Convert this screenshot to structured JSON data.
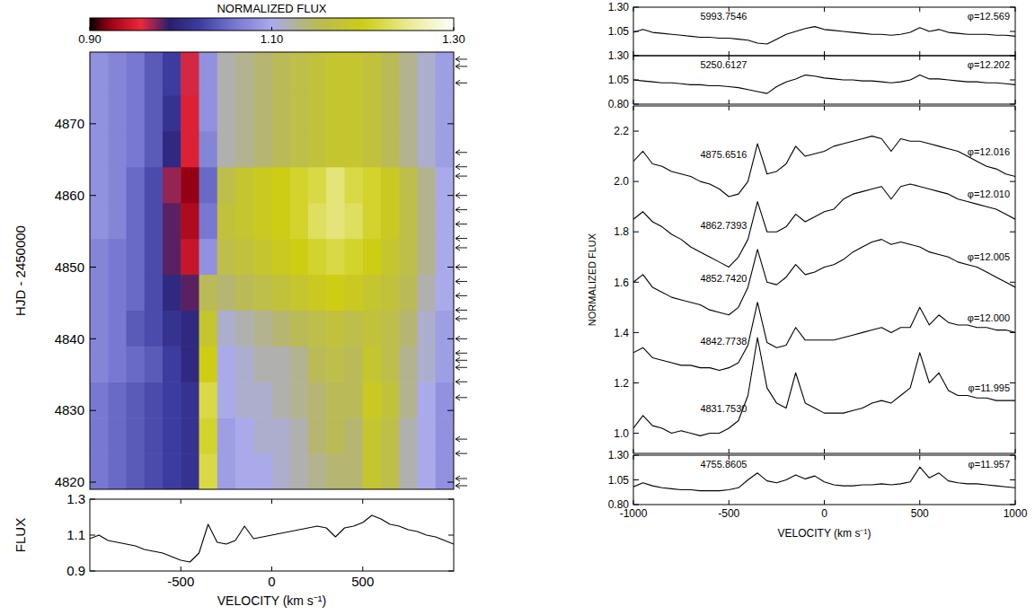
{
  "chart_data": [
    {
      "type": "heatmap",
      "ylabel": "HJD - 2450000",
      "xlim": [
        -1000,
        1000
      ],
      "ylim": [
        4819,
        4880
      ],
      "yticks": [
        4820,
        4830,
        4840,
        4850,
        4860,
        4870
      ],
      "tick_labels": "y",
      "colorbar": {
        "title": "NORMALIZED FLUX",
        "range": [
          0.9,
          1.3
        ],
        "ticks": [
          {
            "value": 0.9,
            "label": "0.90"
          },
          {
            "value": 1.1,
            "label": "1.10"
          },
          {
            "value": 1.3,
            "label": "1.30"
          }
        ]
      },
      "x_edges": [
        -1000,
        -900,
        -800,
        -700,
        -600,
        -500,
        -400,
        -300,
        -200,
        -100,
        0,
        100,
        200,
        300,
        400,
        500,
        600,
        700,
        800,
        900,
        1000
      ],
      "y_edges": [
        4819,
        4824,
        4829,
        4834,
        4839,
        4844,
        4849,
        4854,
        4859,
        4864,
        4869,
        4874,
        4880
      ],
      "cells": [
        [
          1.06,
          1.05,
          1.04,
          1.03,
          1.02,
          1.01,
          1.22,
          1.09,
          1.1,
          1.1,
          1.11,
          1.12,
          1.13,
          1.14,
          1.14,
          1.18,
          1.16,
          1.12,
          1.1,
          1.08
        ],
        [
          1.06,
          1.05,
          1.04,
          1.03,
          1.02,
          1.01,
          1.21,
          1.09,
          1.1,
          1.11,
          1.11,
          1.12,
          1.14,
          1.15,
          1.14,
          1.18,
          1.16,
          1.12,
          1.1,
          1.08
        ],
        [
          1.06,
          1.05,
          1.04,
          1.03,
          1.02,
          1.01,
          1.22,
          1.1,
          1.11,
          1.11,
          1.12,
          1.13,
          1.14,
          1.15,
          1.15,
          1.19,
          1.17,
          1.13,
          1.1,
          1.08
        ],
        [
          1.07,
          1.06,
          1.05,
          1.04,
          1.02,
          1.0,
          1.2,
          1.1,
          1.11,
          1.12,
          1.12,
          1.13,
          1.15,
          1.16,
          1.15,
          1.18,
          1.16,
          1.13,
          1.11,
          1.09
        ],
        [
          1.07,
          1.06,
          1.04,
          1.03,
          1.01,
          1.0,
          1.18,
          1.11,
          1.12,
          1.13,
          1.14,
          1.15,
          1.16,
          1.17,
          1.16,
          1.17,
          1.16,
          1.14,
          1.11,
          1.09
        ],
        [
          1.07,
          1.06,
          1.05,
          1.03,
          1.0,
          0.98,
          1.15,
          1.14,
          1.15,
          1.16,
          1.17,
          1.18,
          1.19,
          1.2,
          1.19,
          1.18,
          1.17,
          1.15,
          1.12,
          1.1
        ],
        [
          1.07,
          1.06,
          1.05,
          1.03,
          0.98,
          0.94,
          1.08,
          1.16,
          1.17,
          1.18,
          1.19,
          1.2,
          1.21,
          1.22,
          1.21,
          1.2,
          1.18,
          1.16,
          1.13,
          1.1
        ],
        [
          1.08,
          1.07,
          1.05,
          1.03,
          0.98,
          0.93,
          1.06,
          1.17,
          1.18,
          1.19,
          1.2,
          1.21,
          1.23,
          1.24,
          1.23,
          1.21,
          1.19,
          1.16,
          1.13,
          1.1
        ],
        [
          1.08,
          1.07,
          1.05,
          1.03,
          0.97,
          0.92,
          1.05,
          1.16,
          1.18,
          1.19,
          1.2,
          1.21,
          1.22,
          1.24,
          1.22,
          1.21,
          1.19,
          1.16,
          1.13,
          1.1
        ],
        [
          1.08,
          1.07,
          1.06,
          1.04,
          1.0,
          0.95,
          1.07,
          1.12,
          1.13,
          1.14,
          1.15,
          1.16,
          1.17,
          1.18,
          1.18,
          1.17,
          1.15,
          1.13,
          1.11,
          1.09
        ],
        [
          1.08,
          1.07,
          1.06,
          1.04,
          1.01,
          0.95,
          1.08,
          1.12,
          1.13,
          1.14,
          1.15,
          1.16,
          1.17,
          1.18,
          1.18,
          1.17,
          1.15,
          1.13,
          1.11,
          1.09
        ],
        [
          1.08,
          1.07,
          1.06,
          1.04,
          1.02,
          0.96,
          1.08,
          1.12,
          1.13,
          1.14,
          1.15,
          1.16,
          1.17,
          1.18,
          1.18,
          1.17,
          1.15,
          1.13,
          1.11,
          1.09
        ]
      ],
      "observation_dates": [
        4819.5,
        4820.5,
        4824,
        4826,
        4831.8,
        4834,
        4836,
        4837,
        4838,
        4840,
        4842.8,
        4844,
        4846,
        4848,
        4850,
        4852.7,
        4854,
        4856,
        4858,
        4860,
        4862.7,
        4864,
        4866,
        4875.7,
        4878,
        4879
      ]
    },
    {
      "type": "line",
      "xlabel": "VELOCITY (km s⁻¹)",
      "ylabel": "FLUX",
      "xlim": [
        -1000,
        1000
      ],
      "ylim": [
        0.9,
        1.3
      ],
      "xticks": [
        -500,
        0,
        500
      ],
      "yticks": [
        0.9,
        1.1,
        1.3
      ],
      "x": [
        -1000,
        -950,
        -900,
        -850,
        -800,
        -750,
        -700,
        -650,
        -600,
        -550,
        -500,
        -450,
        -400,
        -350,
        -300,
        -250,
        -200,
        -150,
        -100,
        -50,
        0,
        50,
        100,
        150,
        200,
        250,
        300,
        350,
        400,
        450,
        500,
        550,
        600,
        650,
        700,
        750,
        800,
        850,
        900,
        950,
        1000
      ],
      "series": [
        {
          "color": "#000000",
          "values": [
            1.08,
            1.1,
            1.07,
            1.06,
            1.05,
            1.04,
            1.02,
            1.01,
            1.0,
            0.98,
            0.96,
            0.95,
            1.0,
            1.16,
            1.06,
            1.05,
            1.07,
            1.15,
            1.08,
            1.09,
            1.1,
            1.11,
            1.12,
            1.13,
            1.14,
            1.15,
            1.14,
            1.09,
            1.14,
            1.15,
            1.17,
            1.21,
            1.19,
            1.16,
            1.15,
            1.13,
            1.12,
            1.1,
            1.09,
            1.07,
            1.05
          ]
        }
      ]
    },
    {
      "type": "line",
      "xlim": [
        -1000,
        1000
      ],
      "ylim": [
        0.8,
        1.3
      ],
      "xticks": [
        -1000,
        -500,
        0,
        500,
        1000
      ],
      "yticks": [
        1.05,
        {
          "value": 1.3,
          "label": "1.30"
        }
      ],
      "tick_labels": "y",
      "x": [
        -1000,
        -950,
        -900,
        -850,
        -800,
        -750,
        -700,
        -650,
        -600,
        -550,
        -500,
        -450,
        -400,
        -350,
        -300,
        -250,
        -200,
        -150,
        -100,
        -50,
        0,
        50,
        100,
        150,
        200,
        250,
        300,
        350,
        400,
        450,
        500,
        550,
        600,
        650,
        700,
        750,
        800,
        850,
        900,
        950,
        1000
      ],
      "series": [
        {
          "color": "#000000",
          "date_label": "5993.7546",
          "phase_label": "φ=12.569",
          "values": [
            1.04,
            1.07,
            1.04,
            1.03,
            1.02,
            1.01,
            1.0,
            0.99,
            0.99,
            0.98,
            0.98,
            0.97,
            0.96,
            0.93,
            0.92,
            0.97,
            1.02,
            1.05,
            1.08,
            1.1,
            1.07,
            1.06,
            1.05,
            1.04,
            1.03,
            1.02,
            1.02,
            1.01,
            1.02,
            1.04,
            1.09,
            1.05,
            1.07,
            1.04,
            1.03,
            1.02,
            1.02,
            1.02,
            1.01,
            1.01,
            1.0
          ]
        }
      ]
    },
    {
      "type": "line",
      "xlim": [
        -1000,
        1000
      ],
      "ylim": [
        0.8,
        1.3
      ],
      "xticks": [
        -1000,
        -500,
        0,
        500,
        1000
      ],
      "yticks": [
        {
          "value": 0.8,
          "label": "0.80"
        },
        1.05,
        {
          "value": 1.3,
          "label": "1.30"
        }
      ],
      "tick_labels": "y",
      "x": [
        -1000,
        -950,
        -900,
        -850,
        -800,
        -750,
        -700,
        -650,
        -600,
        -550,
        -500,
        -450,
        -400,
        -350,
        -300,
        -250,
        -200,
        -150,
        -100,
        -50,
        0,
        50,
        100,
        150,
        200,
        250,
        300,
        350,
        400,
        450,
        500,
        550,
        600,
        650,
        700,
        750,
        800,
        850,
        900,
        950,
        1000
      ],
      "series": [
        {
          "color": "#000000",
          "date_label": "5250.6127",
          "phase_label": "φ=12.202",
          "values": [
            1.05,
            1.04,
            1.03,
            1.02,
            1.02,
            1.01,
            1.0,
            1.0,
            0.99,
            0.99,
            0.98,
            0.97,
            0.95,
            0.93,
            0.91,
            0.98,
            1.03,
            1.06,
            1.1,
            1.09,
            1.07,
            1.06,
            1.05,
            1.05,
            1.04,
            1.04,
            1.03,
            1.02,
            1.03,
            1.05,
            1.1,
            1.06,
            1.06,
            1.05,
            1.04,
            1.03,
            1.03,
            1.02,
            1.02,
            1.01,
            1.0
          ]
        }
      ]
    },
    {
      "type": "line",
      "ylabel": "NORMALIZED FLUX",
      "xlim": [
        -1000,
        1000
      ],
      "ylim": [
        0.92,
        2.3
      ],
      "xticks": [
        -1000,
        -500,
        0,
        500,
        1000
      ],
      "yticks": [
        {
          "value": 1.0,
          "label": "1.0"
        },
        1.2,
        1.4,
        1.6,
        1.8,
        {
          "value": 2.0,
          "label": "2.0"
        },
        2.2
      ],
      "tick_labels": "y",
      "x": [
        -1000,
        -950,
        -900,
        -850,
        -800,
        -750,
        -700,
        -650,
        -600,
        -550,
        -500,
        -450,
        -400,
        -350,
        -300,
        -250,
        -200,
        -150,
        -100,
        -50,
        0,
        50,
        100,
        150,
        200,
        250,
        300,
        350,
        400,
        450,
        500,
        550,
        600,
        650,
        700,
        750,
        800,
        850,
        900,
        950,
        1000
      ],
      "series": [
        {
          "color": "#000000",
          "date_label": "4875.6516",
          "phase_label": "φ=12.016",
          "values": [
            2.08,
            2.12,
            2.07,
            2.06,
            2.04,
            2.03,
            2.02,
            2.0,
            1.99,
            1.97,
            1.94,
            1.95,
            2.0,
            2.15,
            2.03,
            2.04,
            2.07,
            2.14,
            2.1,
            2.11,
            2.12,
            2.14,
            2.15,
            2.16,
            2.17,
            2.18,
            2.17,
            2.12,
            2.17,
            2.16,
            2.16,
            2.15,
            2.14,
            2.13,
            2.12,
            2.1,
            2.08,
            2.06,
            2.05,
            2.03,
            2.02
          ]
        },
        {
          "color": "#000000",
          "date_label": "4862.7393",
          "phase_label": "φ=12.010",
          "values": [
            1.85,
            1.88,
            1.84,
            1.82,
            1.79,
            1.77,
            1.74,
            1.72,
            1.7,
            1.68,
            1.66,
            1.7,
            1.77,
            1.92,
            1.8,
            1.8,
            1.82,
            1.87,
            1.84,
            1.86,
            1.88,
            1.89,
            1.93,
            1.95,
            1.96,
            1.97,
            1.98,
            1.93,
            1.98,
            1.99,
            1.98,
            1.97,
            1.96,
            1.95,
            1.93,
            1.92,
            1.91,
            1.9,
            1.89,
            1.87,
            1.85
          ]
        },
        {
          "color": "#000000",
          "date_label": "4852.7420",
          "phase_label": "φ=12.005",
          "values": [
            1.6,
            1.63,
            1.58,
            1.56,
            1.54,
            1.53,
            1.52,
            1.51,
            1.49,
            1.48,
            1.47,
            1.5,
            1.58,
            1.73,
            1.6,
            1.59,
            1.62,
            1.67,
            1.63,
            1.64,
            1.66,
            1.67,
            1.69,
            1.72,
            1.74,
            1.76,
            1.77,
            1.75,
            1.76,
            1.75,
            1.74,
            1.72,
            1.71,
            1.7,
            1.68,
            1.67,
            1.66,
            1.64,
            1.62,
            1.6,
            1.58
          ]
        },
        {
          "color": "#000000",
          "date_label": "4842.7738",
          "phase_label": "φ=12.000",
          "values": [
            1.32,
            1.34,
            1.3,
            1.29,
            1.28,
            1.27,
            1.27,
            1.26,
            1.26,
            1.25,
            1.26,
            1.28,
            1.35,
            1.52,
            1.36,
            1.34,
            1.35,
            1.42,
            1.37,
            1.37,
            1.37,
            1.37,
            1.38,
            1.39,
            1.4,
            1.41,
            1.42,
            1.4,
            1.42,
            1.42,
            1.5,
            1.43,
            1.47,
            1.44,
            1.43,
            1.43,
            1.42,
            1.42,
            1.41,
            1.41,
            1.4
          ]
        },
        {
          "color": "#000000",
          "date_label": "4831.7530",
          "phase_label": "φ=11.995",
          "values": [
            1.02,
            1.07,
            1.03,
            1.02,
            1.0,
            1.01,
            1.0,
            0.99,
            1.0,
            1.0,
            1.02,
            1.05,
            1.15,
            1.38,
            1.18,
            1.12,
            1.1,
            1.24,
            1.12,
            1.1,
            1.08,
            1.08,
            1.08,
            1.09,
            1.1,
            1.12,
            1.13,
            1.12,
            1.15,
            1.18,
            1.32,
            1.2,
            1.24,
            1.17,
            1.15,
            1.15,
            1.14,
            1.14,
            1.13,
            1.13,
            1.13
          ]
        }
      ]
    },
    {
      "type": "line",
      "xlabel": "VELOCITY (km s⁻¹)",
      "xlim": [
        -1000,
        1000
      ],
      "ylim": [
        0.8,
        1.3
      ],
      "xticks": [
        -1000,
        -500,
        0,
        500,
        1000
      ],
      "yticks": [
        {
          "value": 0.8,
          "label": "0.80"
        },
        1.05,
        {
          "value": 1.3,
          "label": "1.30"
        }
      ],
      "x": [
        -1000,
        -950,
        -900,
        -850,
        -800,
        -750,
        -700,
        -650,
        -600,
        -550,
        -500,
        -450,
        -400,
        -350,
        -300,
        -250,
        -200,
        -150,
        -100,
        -50,
        0,
        50,
        100,
        150,
        200,
        250,
        300,
        350,
        400,
        450,
        500,
        550,
        600,
        650,
        700,
        750,
        800,
        850,
        900,
        950,
        1000
      ],
      "series": [
        {
          "color": "#000000",
          "date_label": "4755.8605",
          "phase_label": "φ=11.957",
          "values": [
            0.98,
            1.02,
            0.99,
            0.97,
            0.96,
            0.95,
            0.95,
            0.94,
            0.94,
            0.94,
            0.95,
            0.97,
            1.05,
            1.12,
            1.04,
            1.02,
            1.05,
            1.1,
            1.06,
            1.09,
            1.03,
            1.0,
            0.99,
            0.99,
            1.0,
            1.0,
            1.01,
            1.0,
            1.01,
            1.03,
            1.18,
            1.07,
            1.12,
            1.04,
            1.02,
            1.01,
            1.01,
            1.0,
            0.99,
            0.98,
            0.97
          ]
        }
      ]
    }
  ]
}
